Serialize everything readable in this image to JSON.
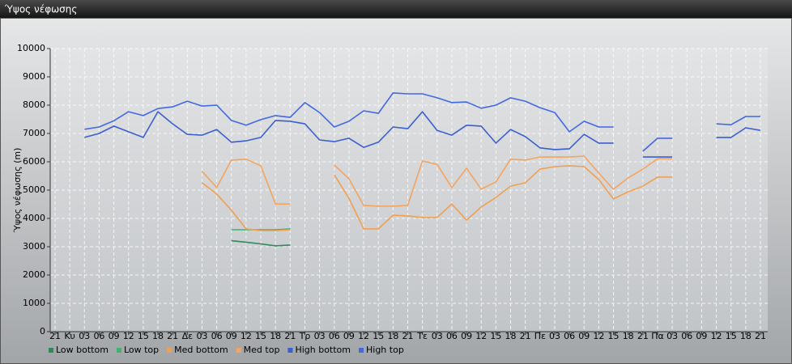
{
  "chart_data": {
    "type": "line",
    "title": "Ύψος νέφωσης",
    "ylabel": "Ύψος νέφωσης (m)",
    "categories": [
      "21",
      "Κυ",
      "03",
      "06",
      "09",
      "12",
      "15",
      "18",
      "21",
      "Δε",
      "03",
      "06",
      "09",
      "12",
      "15",
      "18",
      "21",
      "Τρ",
      "03",
      "06",
      "09",
      "12",
      "15",
      "18",
      "21",
      "Τε",
      "03",
      "06",
      "09",
      "12",
      "15",
      "18",
      "21",
      "Πε",
      "03",
      "06",
      "09",
      "12",
      "15",
      "18",
      "21",
      "Πα",
      "03",
      "06",
      "09",
      "12",
      "15",
      "18",
      "21"
    ],
    "ylim": [
      0,
      10000
    ],
    "yticks": [
      0,
      1000,
      2000,
      3000,
      4000,
      5000,
      6000,
      7000,
      8000,
      9000,
      10000
    ],
    "grid": true,
    "legend": "bottom-left",
    "series": [
      {
        "name": "Low bottom",
        "color": "#2e8b57",
        "values": [
          null,
          null,
          null,
          null,
          null,
          null,
          null,
          null,
          null,
          null,
          null,
          null,
          3210,
          3160,
          3100,
          3030,
          3060,
          null,
          null,
          null,
          null,
          null,
          null,
          null,
          null,
          null,
          null,
          null,
          null,
          null,
          null,
          null,
          null,
          null,
          null,
          null,
          null,
          null,
          null,
          null,
          null,
          null,
          null,
          null,
          null,
          null,
          null,
          null,
          null
        ]
      },
      {
        "name": "Low top",
        "color": "#3cb371",
        "values": [
          null,
          null,
          null,
          null,
          null,
          null,
          null,
          null,
          null,
          null,
          null,
          null,
          3600,
          3600,
          3600,
          3600,
          3630,
          null,
          null,
          null,
          null,
          null,
          null,
          null,
          null,
          null,
          null,
          null,
          null,
          null,
          null,
          null,
          null,
          null,
          null,
          null,
          null,
          null,
          null,
          null,
          null,
          null,
          null,
          null,
          null,
          null,
          null,
          null,
          null
        ]
      },
      {
        "name": "Med bottom",
        "color": "#f0a050",
        "values": [
          null,
          null,
          null,
          null,
          null,
          null,
          null,
          null,
          null,
          null,
          5260,
          4860,
          4290,
          3630,
          3570,
          3570,
          3600,
          null,
          null,
          5540,
          4710,
          3630,
          3630,
          4110,
          4090,
          4030,
          4030,
          4510,
          3940,
          4400,
          4740,
          5140,
          5260,
          5740,
          5830,
          5860,
          5830,
          5370,
          4690,
          4940,
          5140,
          5460,
          5460,
          null,
          null,
          null,
          null,
          null,
          null
        ]
      },
      {
        "name": "Med top",
        "color": "#f4a460",
        "values": [
          null,
          null,
          null,
          null,
          null,
          null,
          null,
          null,
          null,
          null,
          5660,
          5090,
          6060,
          6090,
          5860,
          4510,
          4510,
          null,
          null,
          5890,
          5400,
          4460,
          4430,
          4430,
          4460,
          6030,
          5910,
          5090,
          5770,
          5030,
          5290,
          6090,
          6060,
          6170,
          6170,
          6170,
          6200,
          5600,
          5030,
          5430,
          5740,
          6110,
          6110,
          null,
          null,
          null,
          null,
          null,
          null
        ]
      },
      {
        "name": "High bottom",
        "color": "#3a5fcd",
        "values": [
          null,
          null,
          6860,
          7000,
          7260,
          7060,
          6860,
          7770,
          7340,
          6970,
          6940,
          7140,
          6690,
          6740,
          6860,
          7460,
          7430,
          7340,
          6770,
          6710,
          6830,
          6510,
          6690,
          7230,
          7170,
          7770,
          7110,
          6940,
          7290,
          7260,
          6660,
          7140,
          6890,
          6490,
          6430,
          6460,
          6970,
          6660,
          6660,
          null,
          6170,
          6170,
          6170,
          null,
          null,
          6860,
          6860,
          7200,
          7110
        ]
      },
      {
        "name": "High top",
        "color": "#4169e1",
        "values": [
          null,
          null,
          7150,
          7230,
          7450,
          7770,
          7630,
          7880,
          7940,
          8140,
          7970,
          8000,
          7460,
          7290,
          7490,
          7630,
          7570,
          8090,
          7740,
          7230,
          7430,
          7800,
          7710,
          8430,
          8400,
          8400,
          8260,
          8090,
          8110,
          7890,
          8000,
          8260,
          8140,
          7910,
          7740,
          7060,
          7430,
          7230,
          7230,
          null,
          6370,
          6830,
          6830,
          null,
          null,
          7340,
          7310,
          7600,
          7600
        ]
      }
    ]
  }
}
